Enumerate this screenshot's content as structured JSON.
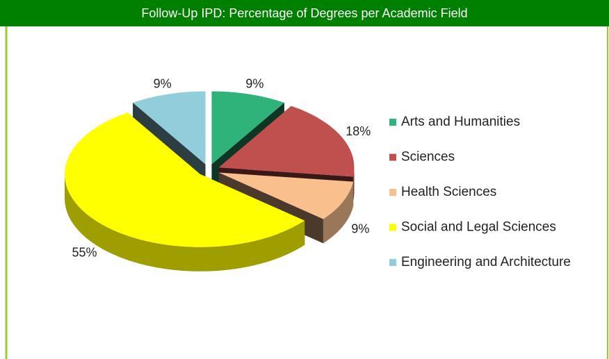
{
  "chart_data": {
    "type": "pie",
    "title": "Follow-Up IPD: Percentage of Degrees per Academic Field",
    "categories": [
      "Arts and Humanities",
      "Sciences",
      "Health Sciences",
      "Social and Legal Sciences",
      "Engineering and Architecture"
    ],
    "values": [
      9,
      18,
      9,
      55,
      9
    ],
    "value_labels": [
      "9%",
      "18%",
      "9%",
      "55%",
      "9%"
    ],
    "colors": [
      "#2fb37a",
      "#c0504d",
      "#f9c08e",
      "#ffff00",
      "#92cddc"
    ],
    "legend": "right"
  }
}
